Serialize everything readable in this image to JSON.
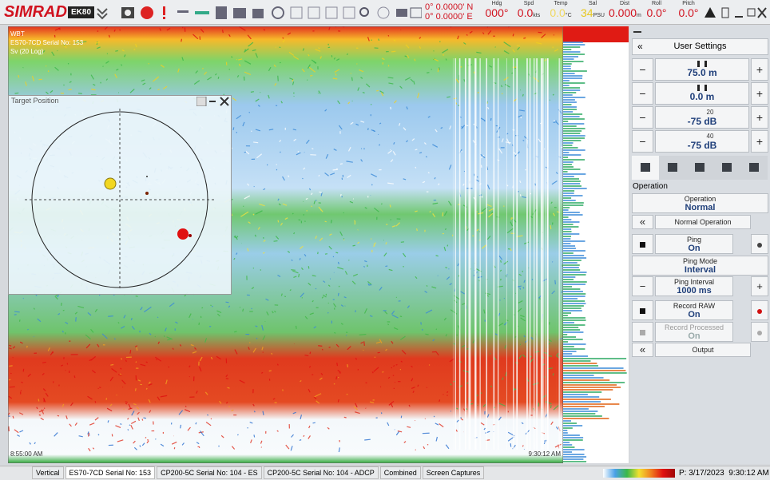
{
  "toolbar": {
    "logo": "SIMRAD",
    "product": "EK80",
    "latitude": "0° 0.0000' N",
    "longitude": "0° 0.0000' E",
    "readouts": [
      {
        "label": "Hdg",
        "value": "000°"
      },
      {
        "label": "Spd",
        "value": "0.0",
        "unit": "kts"
      },
      {
        "label": "Temp",
        "value": "0.0",
        "unit": "°C"
      },
      {
        "label": "Sal",
        "value": "34",
        "unit": "PSU"
      },
      {
        "label": "Dist",
        "value": "0.000",
        "unit": "m"
      },
      {
        "label": "Roll",
        "value": "0.0°"
      },
      {
        "label": "Pitch",
        "value": "0.0°"
      }
    ]
  },
  "echogram": {
    "channel": "WBT",
    "transducer": "ES70-7CD Serial No: 153",
    "mode": "Sv (20 Log)",
    "start_time": "8:55:00 AM",
    "end_time": "9:30:12 AM"
  },
  "target_window": {
    "title": "Target Position"
  },
  "settings": {
    "collapse": "«",
    "header": "User Settings",
    "rows": [
      {
        "left": "−",
        "value": "75.0 m",
        "right": "+"
      },
      {
        "left": "−",
        "value": "0.0 m",
        "right": "+"
      },
      {
        "left": "−",
        "top": "20",
        "value": "-75 dB",
        "right": "+"
      },
      {
        "left": "−",
        "top": "40",
        "value": "-75 dB",
        "right": "+"
      }
    ],
    "section": "Operation",
    "buttons": [
      {
        "label": "Operation",
        "value": "Normal"
      },
      {
        "left": "«",
        "label": "Normal Operation"
      },
      {
        "label": "Ping",
        "value": "On"
      },
      {
        "label": "Ping Mode",
        "value": "Interval"
      },
      {
        "left": "−",
        "label": "Ping Interval",
        "value": "1000 ms",
        "right": "+"
      },
      {
        "label": "Record RAW",
        "value": "On"
      },
      {
        "label": "Record Processed",
        "value": "On"
      },
      {
        "left": "«",
        "label": "Output"
      }
    ]
  },
  "tabs": [
    "Vertical",
    "ES70-7CD Serial No: 153",
    "CP200-5C Serial No: 104 - ES",
    "CP200-5C Serial No: 104 - ADCP",
    "Combined",
    "Screen Captures"
  ],
  "status": "P: 3/17/2023  9:30:12 AM"
}
